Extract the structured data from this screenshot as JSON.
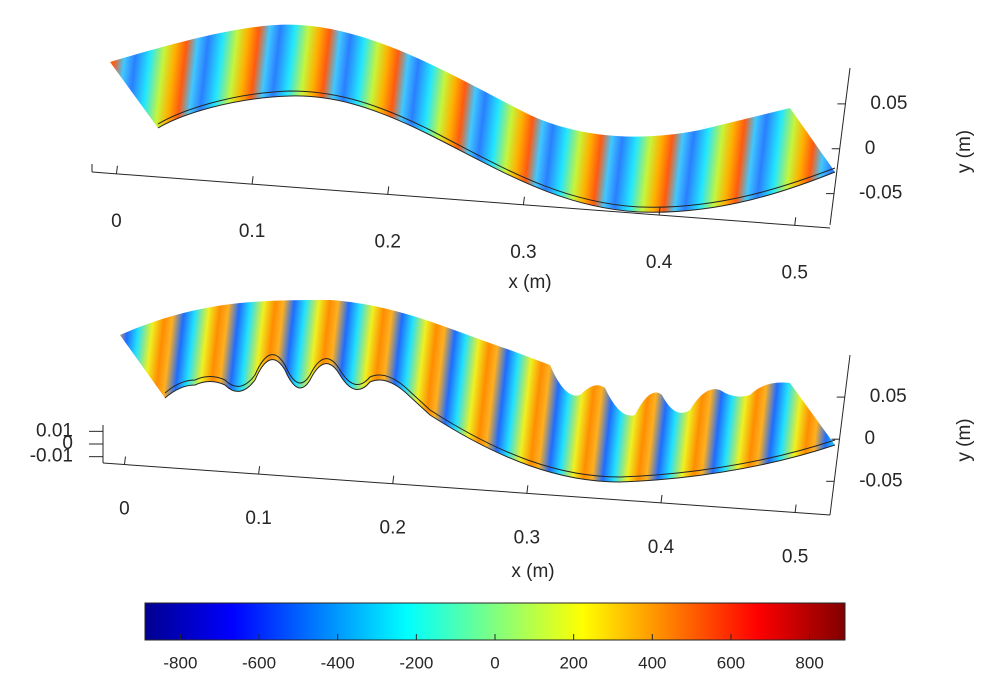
{
  "chart_data": [
    {
      "type": "surface3d",
      "x_label": "x (m)",
      "y_label": "y (m)",
      "xlim": [
        -0.018,
        0.526
      ],
      "xticks": [
        0,
        0.1,
        0.2,
        0.3,
        0.4,
        0.5
      ],
      "ylim": [
        -0.085,
        0.09
      ],
      "yticks": [
        {
          "value": 0.05,
          "label": "0.05"
        },
        0,
        {
          "value": -0.05,
          "label": "-0.05"
        }
      ]
    },
    {
      "type": "surface3d",
      "x_label": "x (m)",
      "y_label": "y (m)",
      "xlim": [
        -0.016,
        0.526
      ],
      "xticks": [
        0,
        0.1,
        0.2,
        0.3,
        0.4,
        0.5
      ],
      "ylim": [
        -0.09,
        0.1
      ],
      "yticks": [
        {
          "value": 0.05,
          "label": "0.05"
        },
        0,
        {
          "value": -0.05,
          "label": "-0.05"
        }
      ],
      "zlim": [
        -0.015,
        0.015
      ],
      "zticks": [
        {
          "value": 0.01,
          "label": "0.01"
        },
        0,
        {
          "value": -0.01,
          "label": "-0.01"
        }
      ]
    }
  ],
  "colorbar": {
    "colormap": "jet",
    "clim": [
      -890,
      890
    ],
    "ticks": [
      -800,
      -600,
      -400,
      -200,
      0,
      200,
      400,
      600,
      800
    ]
  }
}
